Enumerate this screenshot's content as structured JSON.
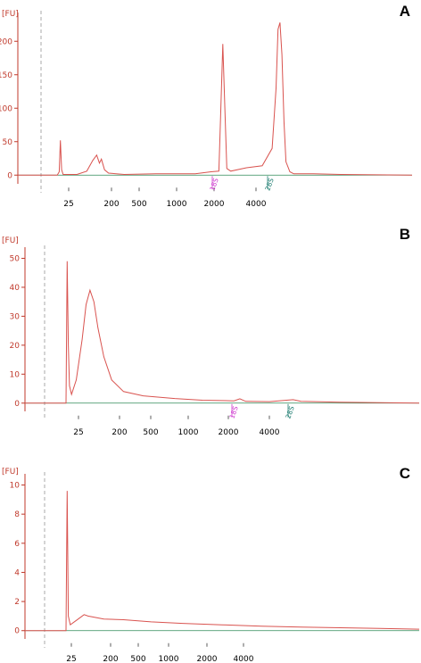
{
  "colors": {
    "trace": "#d9534f",
    "axis": "#c0392b",
    "baseline": "#2e8b57",
    "marker_18s": "#cc33cc",
    "marker_28s": "#1a7a6e",
    "dashed": "#aaaaaa"
  },
  "chart_data": [
    {
      "type": "line",
      "panel": "A",
      "unit": "[FU]",
      "yticks": [
        "0",
        "50",
        "100",
        "150",
        "200"
      ],
      "ylim": [
        -5,
        235
      ],
      "xticks": [
        "25",
        "200",
        "500",
        "1000",
        "2000",
        "4000"
      ],
      "annotations": [
        {
          "text": "18S"
        },
        {
          "text": "28S"
        }
      ],
      "series": [
        {
          "points": [
            [
              0.0,
              0
            ],
            [
              0.1,
              0
            ],
            [
              0.105,
              5
            ],
            [
              0.108,
              52
            ],
            [
              0.111,
              8
            ],
            [
              0.115,
              1
            ],
            [
              0.15,
              1
            ],
            [
              0.175,
              6
            ],
            [
              0.19,
              22
            ],
            [
              0.2,
              30
            ],
            [
              0.207,
              18
            ],
            [
              0.212,
              24
            ],
            [
              0.22,
              8
            ],
            [
              0.23,
              3
            ],
            [
              0.27,
              1
            ],
            [
              0.35,
              2
            ],
            [
              0.45,
              2
            ],
            [
              0.49,
              5
            ],
            [
              0.51,
              6
            ],
            [
              0.515,
              100
            ],
            [
              0.52,
              196
            ],
            [
              0.525,
              100
            ],
            [
              0.53,
              10
            ],
            [
              0.54,
              6
            ],
            [
              0.58,
              11
            ],
            [
              0.62,
              14
            ],
            [
              0.645,
              40
            ],
            [
              0.655,
              130
            ],
            [
              0.66,
              218
            ],
            [
              0.665,
              228
            ],
            [
              0.67,
              180
            ],
            [
              0.675,
              80
            ],
            [
              0.68,
              20
            ],
            [
              0.69,
              5
            ],
            [
              0.7,
              2
            ],
            [
              0.75,
              2
            ],
            [
              0.82,
              1
            ],
            [
              1.0,
              0
            ]
          ]
        }
      ]
    },
    {
      "type": "line",
      "panel": "B",
      "unit": "[FU]",
      "yticks": [
        "0",
        "10",
        "20",
        "30",
        "40",
        "50"
      ],
      "ylim": [
        -1,
        52
      ],
      "xticks": [
        "25",
        "200",
        "500",
        "1000",
        "2000",
        "4000"
      ],
      "annotations": [
        {
          "text": "18S"
        },
        {
          "text": "28S"
        }
      ],
      "series": [
        {
          "points": [
            [
              0.0,
              0
            ],
            [
              0.104,
              0
            ],
            [
              0.107,
              49
            ],
            [
              0.11,
              20
            ],
            [
              0.113,
              6
            ],
            [
              0.118,
              3
            ],
            [
              0.13,
              8
            ],
            [
              0.145,
              22
            ],
            [
              0.155,
              34
            ],
            [
              0.165,
              39
            ],
            [
              0.175,
              35
            ],
            [
              0.185,
              26
            ],
            [
              0.2,
              16
            ],
            [
              0.22,
              8
            ],
            [
              0.25,
              4
            ],
            [
              0.3,
              2.5
            ],
            [
              0.38,
              1.6
            ],
            [
              0.45,
              1
            ],
            [
              0.53,
              0.8
            ],
            [
              0.545,
              1.5
            ],
            [
              0.56,
              0.6
            ],
            [
              0.62,
              0.5
            ],
            [
              0.68,
              1.2
            ],
            [
              0.7,
              0.6
            ],
            [
              0.8,
              0.3
            ],
            [
              1.0,
              0
            ]
          ]
        }
      ]
    },
    {
      "type": "line",
      "panel": "C",
      "unit": "[FU]",
      "yticks": [
        "0",
        "2",
        "4",
        "6",
        "8",
        "10"
      ],
      "ylim": [
        -0.2,
        10.4
      ],
      "xticks": [
        "25",
        "200",
        "500",
        "1000",
        "2000",
        "4000"
      ],
      "series": [
        {
          "points": [
            [
              0.0,
              0
            ],
            [
              0.104,
              0
            ],
            [
              0.107,
              9.6
            ],
            [
              0.11,
              1
            ],
            [
              0.115,
              0.4
            ],
            [
              0.13,
              0.7
            ],
            [
              0.15,
              1.1
            ],
            [
              0.16,
              1.0
            ],
            [
              0.2,
              0.8
            ],
            [
              0.25,
              0.75
            ],
            [
              0.32,
              0.6
            ],
            [
              0.4,
              0.5
            ],
            [
              0.5,
              0.4
            ],
            [
              0.6,
              0.3
            ],
            [
              0.7,
              0.25
            ],
            [
              0.8,
              0.2
            ],
            [
              0.9,
              0.15
            ],
            [
              1.0,
              0.1
            ]
          ]
        }
      ]
    }
  ]
}
